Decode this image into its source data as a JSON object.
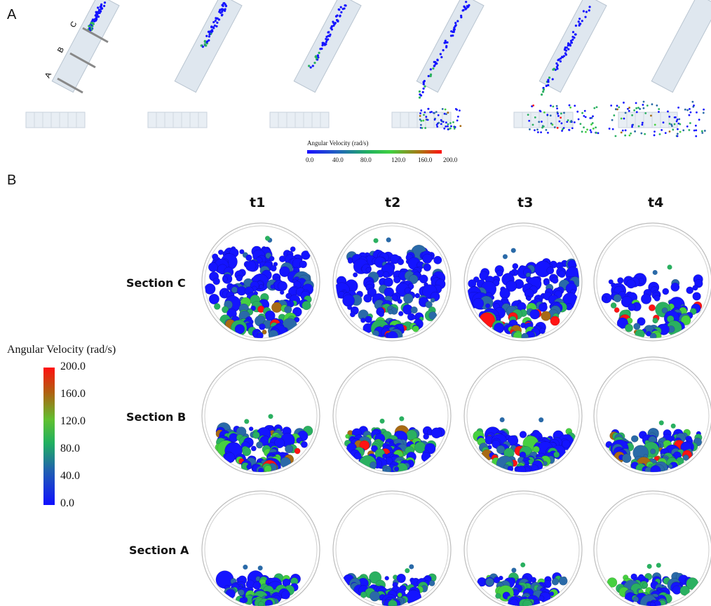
{
  "panel_a": {
    "letter": "A",
    "section_markers": [
      "C",
      "B",
      "A"
    ],
    "legend": {
      "title": "Angular Velocity (rad/s)",
      "ticks": [
        "0.0",
        "40.0",
        "80.0",
        "120.0",
        "160.0",
        "200.0"
      ]
    }
  },
  "panel_b": {
    "letter": "B",
    "columns": [
      "t1",
      "t2",
      "t3",
      "t4"
    ],
    "rows": [
      "Section C",
      "Section B",
      "Section A"
    ],
    "legend": {
      "title": "Angular Velocity (rad/s)",
      "ticks": [
        "200.0",
        "160.0",
        "120.0",
        "80.0",
        "40.0",
        "0.0"
      ]
    }
  },
  "colors": {
    "low": "#1414ff",
    "mid_low": "#2a6aa8",
    "mid": "#2ab060",
    "mid_high": "#46d040",
    "high_mid": "#a86a14",
    "high": "#ff1414",
    "tube": "#dfe7ef"
  }
}
